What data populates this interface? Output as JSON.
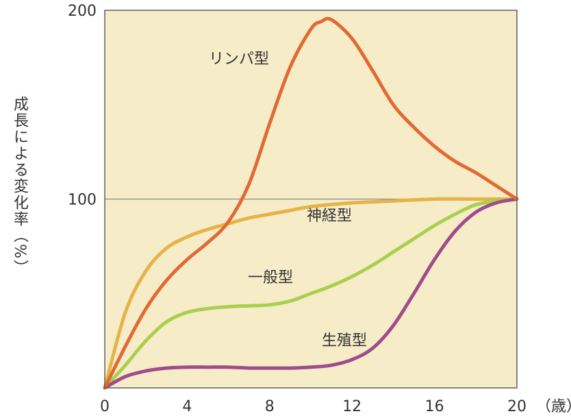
{
  "chart_data": {
    "type": "line",
    "xlabel": "",
    "ylabel": "成長による変化率（%）",
    "x_unit": "（歳）",
    "xlim": [
      0,
      20
    ],
    "ylim": [
      0,
      200
    ],
    "x_ticks": [
      "0",
      "4",
      "8",
      "12",
      "16",
      "20"
    ],
    "y_ticks": [
      "100",
      "200"
    ],
    "reference_line": 100,
    "plot_background": "#f6ecc8",
    "series": [
      {
        "name": "リンパ型",
        "color": "#e06a34",
        "x": [
          0,
          1,
          2,
          3,
          4,
          5,
          6,
          7,
          8,
          9,
          10,
          10.5,
          11,
          12,
          13,
          14,
          15,
          16,
          17,
          18,
          19,
          20
        ],
        "y": [
          0,
          22,
          42,
          57,
          68,
          77,
          88,
          108,
          140,
          170,
          190,
          194,
          195,
          185,
          168,
          150,
          138,
          128,
          120,
          114,
          107,
          100
        ]
      },
      {
        "name": "神経型",
        "color": "#e5b347",
        "x": [
          0,
          1,
          2,
          3,
          4,
          5,
          6,
          7,
          8,
          9,
          10,
          12,
          14,
          16,
          18,
          20
        ],
        "y": [
          0,
          40,
          62,
          74,
          80,
          84,
          87,
          90,
          92,
          94,
          96,
          98,
          99,
          100,
          100,
          100
        ]
      },
      {
        "name": "一般型",
        "color": "#a9cf4f",
        "x": [
          0,
          1,
          2,
          3,
          4,
          5,
          6,
          7,
          8,
          9,
          10,
          11,
          12,
          13,
          14,
          15,
          16,
          17,
          18,
          19,
          20
        ],
        "y": [
          0,
          12,
          25,
          35,
          40,
          42,
          43,
          43.5,
          44,
          46,
          50,
          54,
          59,
          65,
          72,
          79,
          86,
          92,
          97,
          99,
          100
        ]
      },
      {
        "name": "生殖型",
        "color": "#9e4d8a",
        "x": [
          0,
          1,
          2,
          3,
          4,
          5,
          6,
          7,
          8,
          9,
          10,
          11,
          12,
          13,
          14,
          15,
          16,
          17,
          18,
          19,
          20
        ],
        "y": [
          0,
          6,
          9,
          10.5,
          11,
          11,
          11,
          10.5,
          10.5,
          10.5,
          11,
          12,
          15,
          21,
          33,
          50,
          68,
          83,
          93,
          98,
          100
        ]
      }
    ]
  }
}
